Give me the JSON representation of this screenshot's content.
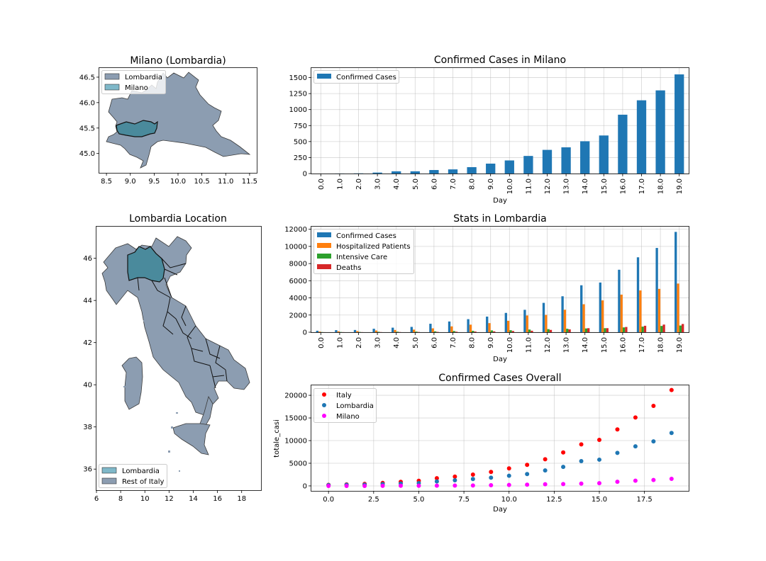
{
  "colors": {
    "blue": "#1f77b4",
    "orange": "#ff7f0e",
    "green": "#2ca02c",
    "red_series": "#d62728",
    "italy_red": "#ff0000",
    "magenta": "#ff00ff",
    "region_fill": "#8c9db1",
    "highlight_fill": "#4a8a9c",
    "legend_light": "#7fb8c9"
  },
  "chart_data": [
    {
      "id": "milano_map",
      "type": "map",
      "title": "Milano (Lombardia)",
      "xlim": [
        8.35,
        11.65
      ],
      "ylim": [
        44.62,
        46.68
      ],
      "xticks": [
        "8.5",
        "9.0",
        "9.5",
        "10.0",
        "10.5",
        "11.0",
        "11.5"
      ],
      "yticks": [
        "45.0",
        "45.5",
        "46.0",
        "46.5"
      ],
      "legend": {
        "position": "upper left",
        "entries": [
          "Lombardia",
          "Milano"
        ]
      }
    },
    {
      "id": "milano_bar",
      "type": "bar",
      "title": "Confirmed Cases in Milano",
      "xlabel": "Day",
      "ylabel": "",
      "categories": [
        "0.0",
        "1.0",
        "2.0",
        "3.0",
        "4.0",
        "5.0",
        "6.0",
        "7.0",
        "8.0",
        "9.0",
        "10.0",
        "11.0",
        "12.0",
        "13.0",
        "14.0",
        "15.0",
        "16.0",
        "17.0",
        "18.0",
        "19.0"
      ],
      "series": [
        {
          "name": "Confirmed Cases",
          "values": [
            0,
            1,
            3,
            15,
            35,
            35,
            55,
            65,
            100,
            155,
            205,
            275,
            370,
            410,
            505,
            595,
            920,
            1145,
            1300,
            1550
          ]
        }
      ],
      "ylim": [
        0,
        1650
      ],
      "yticks": [
        0,
        250,
        500,
        750,
        1000,
        1250,
        1500
      ],
      "grid": true,
      "legend": "upper left"
    },
    {
      "id": "italy_map",
      "type": "map",
      "title": "Lombardia Location",
      "xlim": [
        6.0,
        19.6
      ],
      "ylim": [
        35.0,
        47.5
      ],
      "xticks": [
        "6",
        "8",
        "10",
        "12",
        "14",
        "16",
        "18"
      ],
      "yticks": [
        "36",
        "38",
        "40",
        "42",
        "44",
        "46"
      ],
      "legend": {
        "position": "lower left",
        "entries": [
          "Lombardia",
          "Rest of Italy"
        ]
      }
    },
    {
      "id": "lombardia_bar",
      "type": "bar",
      "title": "Stats in Lombardia",
      "xlabel": "Day",
      "ylabel": "",
      "categories": [
        "0.0",
        "1.0",
        "2.0",
        "3.0",
        "4.0",
        "5.0",
        "6.0",
        "7.0",
        "8.0",
        "9.0",
        "10.0",
        "11.0",
        "12.0",
        "13.0",
        "14.0",
        "15.0",
        "16.0",
        "17.0",
        "18.0",
        "19.0"
      ],
      "series": [
        {
          "name": "Confirmed Cases",
          "values": [
            170,
            240,
            260,
            400,
            530,
            620,
            985,
            1250,
            1520,
            1820,
            2250,
            2610,
            3420,
            4190,
            5470,
            5790,
            7280,
            8730,
            9820,
            11690
          ]
        },
        {
          "name": "Hospitalized Patients",
          "values": [
            80,
            110,
            130,
            200,
            260,
            300,
            450,
            680,
            880,
            1060,
            1330,
            1950,
            2020,
            2620,
            3260,
            3710,
            4380,
            4870,
            5050,
            5670
          ]
        },
        {
          "name": "Intensive Care",
          "values": [
            20,
            25,
            30,
            50,
            60,
            70,
            100,
            140,
            160,
            210,
            230,
            310,
            360,
            400,
            440,
            470,
            560,
            650,
            730,
            780
          ]
        },
        {
          "name": "Deaths",
          "values": [
            5,
            10,
            10,
            15,
            20,
            30,
            40,
            60,
            80,
            100,
            140,
            170,
            270,
            330,
            470,
            470,
            610,
            750,
            890,
            960
          ]
        }
      ],
      "ylim": [
        0,
        12300
      ],
      "yticks": [
        0,
        2000,
        4000,
        6000,
        8000,
        10000,
        12000
      ],
      "grid": true,
      "legend": "upper left"
    },
    {
      "id": "overall_scatter",
      "type": "scatter",
      "title": "Confirmed Cases Overall",
      "xlabel": "Day",
      "ylabel": "totale_casi",
      "xlim": [
        -0.95,
        19.95
      ],
      "ylim": [
        -1100,
        22200
      ],
      "xticks": [
        0,
        2.5,
        5,
        7.5,
        10,
        12.5,
        15,
        17.5
      ],
      "xtick_labels": [
        "0.0",
        "2.5",
        "5.0",
        "7.5",
        "10.0",
        "12.5",
        "15.0",
        "17.5"
      ],
      "yticks": [
        0,
        5000,
        10000,
        15000,
        20000
      ],
      "x": [
        0,
        1,
        2,
        3,
        4,
        5,
        6,
        7,
        8,
        9,
        10,
        11,
        12,
        13,
        14,
        15,
        16,
        17,
        18,
        19
      ],
      "series": [
        {
          "name": "Italy",
          "values": [
            230,
            320,
            450,
            650,
            890,
            1130,
            1690,
            2040,
            2500,
            3090,
            3860,
            4640,
            5880,
            7380,
            9170,
            10150,
            12460,
            15110,
            17660,
            21160
          ]
        },
        {
          "name": "Lombardia",
          "values": [
            170,
            240,
            260,
            400,
            530,
            620,
            985,
            1250,
            1520,
            1820,
            2250,
            2610,
            3420,
            4190,
            5470,
            5790,
            7280,
            8730,
            9820,
            11690
          ]
        },
        {
          "name": "Milano",
          "values": [
            0,
            1,
            3,
            15,
            35,
            35,
            55,
            65,
            100,
            155,
            205,
            275,
            370,
            410,
            505,
            595,
            920,
            1145,
            1300,
            1550
          ]
        }
      ],
      "grid": true,
      "legend": "upper left"
    }
  ]
}
